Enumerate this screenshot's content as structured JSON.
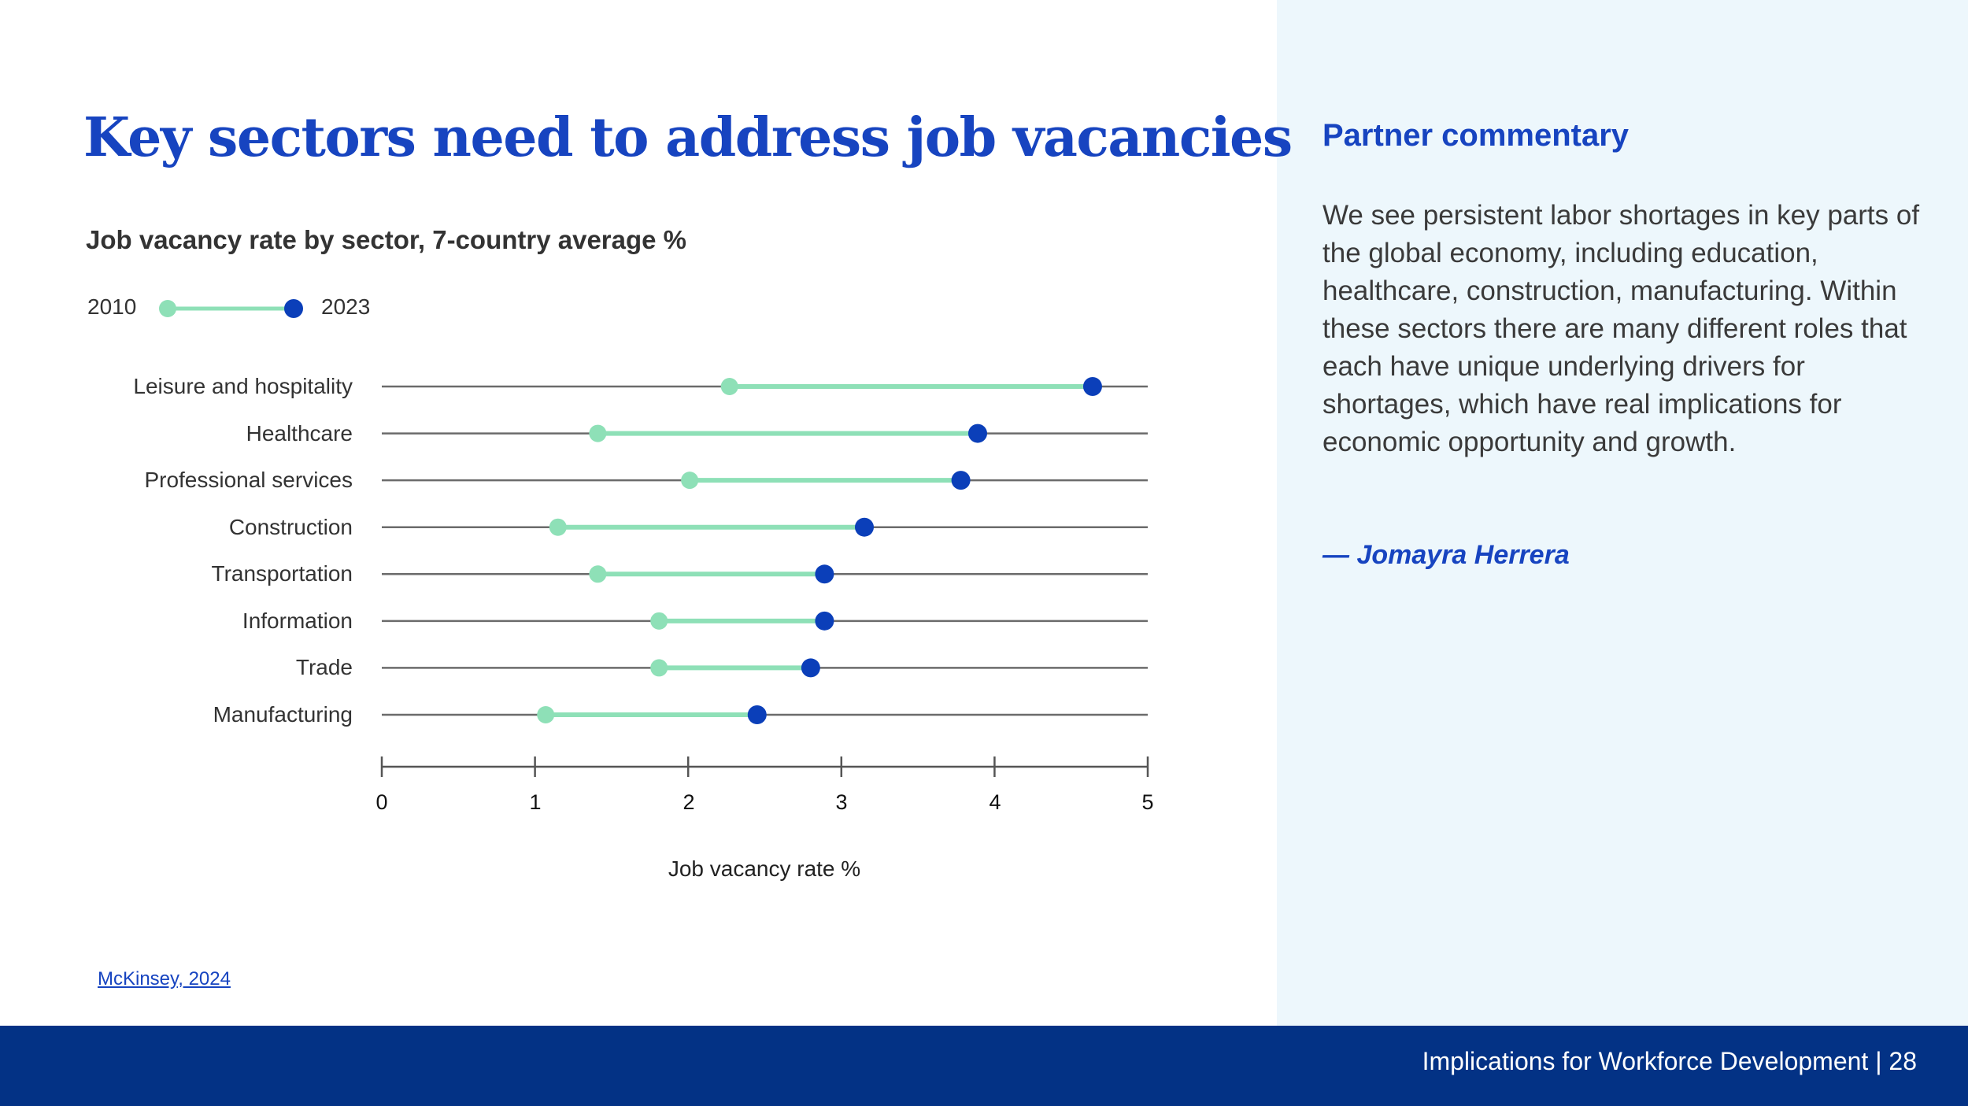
{
  "title": "Key sectors need to address job vacancies",
  "chart_data": {
    "type": "dumbbell",
    "title": "Job vacancy rate by sector, 7-country average %",
    "xlabel": "Job vacancy rate %",
    "ylabel": "",
    "xlim": [
      0,
      5
    ],
    "xticks": [
      "0",
      "1",
      "2",
      "3",
      "4",
      "5"
    ],
    "legend": {
      "start_label": "2010",
      "end_label": "2023",
      "placement": "top-left"
    },
    "categories": [
      "Leisure and hospitality",
      "Healthcare",
      "Professional services",
      "Construction",
      "Transportation",
      "Information",
      "Trade",
      "Manufacturing"
    ],
    "series": [
      {
        "name": "2010",
        "values": [
          2.27,
          1.41,
          2.01,
          1.15,
          1.41,
          1.81,
          1.81,
          1.07
        ]
      },
      {
        "name": "2023",
        "values": [
          4.64,
          3.89,
          3.78,
          3.15,
          2.89,
          2.89,
          2.8,
          2.45
        ]
      }
    ]
  },
  "source": {
    "label": "McKinsey, 2024"
  },
  "sidebar": {
    "heading": "Partner commentary",
    "body": "We see persistent labor shortages in key parts of the global economy, including education, healthcare, construction, manufacturing. Within these sectors there are many different roles that each have unique underlying drivers for shortages, which have real implications for economic opportunity and growth.",
    "author": "— Jomayra Herrera"
  },
  "footer": {
    "text": "Implications for Workforce Development | 28"
  },
  "colors": {
    "title_blue": "#1744c0",
    "start_dot": "#8ee0b7",
    "end_dot": "#0b3fb9",
    "side_bg": "#edf7fc",
    "footer_bg": "#033285"
  }
}
